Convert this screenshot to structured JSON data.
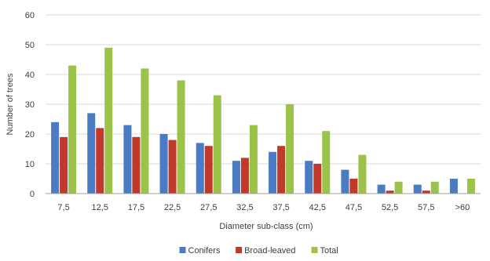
{
  "chart_data": {
    "type": "bar",
    "title": "",
    "xlabel": "Diameter sub-class (cm)",
    "ylabel": "Number of trees",
    "ylim": [
      0,
      60
    ],
    "yticks": [
      "0",
      "10",
      "20",
      "30",
      "40",
      "50",
      "60"
    ],
    "grid": true,
    "legend_position": "bottom",
    "categories": [
      "7,5",
      "12,5",
      "17,5",
      "22,5",
      "27,5",
      "32,5",
      "37,5",
      "42,5",
      "47,5",
      "52,5",
      "57,5",
      ">60"
    ],
    "series": [
      {
        "name": "Conifers",
        "color": "#4a7bc3",
        "values": [
          24,
          27,
          23,
          20,
          17,
          11,
          14,
          11,
          8,
          3,
          3,
          5
        ]
      },
      {
        "name": "Broad-leaved",
        "color": "#c0392b",
        "values": [
          19,
          22,
          19,
          18,
          16,
          12,
          16,
          10,
          5,
          1,
          1,
          0
        ]
      },
      {
        "name": "Total",
        "color": "#9bc34a",
        "values": [
          43,
          49,
          42,
          38,
          33,
          23,
          30,
          21,
          13,
          4,
          4,
          5
        ]
      }
    ]
  }
}
